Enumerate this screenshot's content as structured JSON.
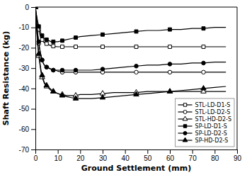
{
  "chart_data": {
    "type": "line",
    "xlabel": "Ground Settlement (mm)",
    "ylabel": "Shaft Resistance (kg)",
    "xlim": [
      0,
      90
    ],
    "ylim": [
      -70,
      0
    ],
    "xticks": [
      0,
      10,
      20,
      30,
      40,
      50,
      60,
      70,
      80,
      90
    ],
    "yticks": [
      0,
      -10,
      -20,
      -30,
      -40,
      -50,
      -60,
      -70
    ],
    "grid": false,
    "legend": "lower right",
    "series": [
      {
        "name": "STL-LD-D1-S",
        "marker": "square-open",
        "color": "#000000",
        "x": [
          0,
          0.5,
          1,
          1.5,
          2,
          2.5,
          3,
          3.5,
          4,
          5,
          6,
          7,
          8,
          9,
          10,
          12,
          14,
          16,
          18,
          20,
          25,
          30,
          35,
          40,
          45,
          50,
          55,
          60,
          65,
          70,
          75,
          80,
          85
        ],
        "values": [
          0,
          -4,
          -8,
          -11,
          -13.5,
          -15,
          -16,
          -17,
          -17.5,
          -18,
          -18.5,
          -19,
          -19.2,
          -19.4,
          -19.5,
          -19.5,
          -19.5,
          -19.5,
          -19.5,
          -19.5,
          -19.5,
          -19.5,
          -19.5,
          -19.5,
          -19.5,
          -19.5,
          -19.5,
          -19.5,
          -19.5,
          -19.5,
          -19.5,
          -19.5,
          -19.5
        ]
      },
      {
        "name": "STL-LD-D2-S",
        "marker": "circle-open",
        "color": "#000000",
        "x": [
          0,
          0.5,
          1,
          1.5,
          2,
          2.5,
          3,
          3.5,
          4,
          5,
          6,
          7,
          8,
          9,
          10,
          12,
          14,
          16,
          18,
          20,
          25,
          30,
          35,
          40,
          45,
          50,
          55,
          60,
          65,
          70,
          75,
          80,
          85
        ],
        "values": [
          0,
          -7,
          -13,
          -18,
          -21,
          -24,
          -26,
          -27.5,
          -28.5,
          -29.5,
          -30,
          -30.5,
          -31,
          -31,
          -31.5,
          -32,
          -32,
          -32,
          -32,
          -32,
          -32,
          -32,
          -32,
          -32,
          -32,
          -32,
          -32,
          -32,
          -32,
          -32,
          -32,
          -32,
          -32
        ]
      },
      {
        "name": "STL-HD-D2-S",
        "marker": "triangle-open",
        "color": "#000000",
        "x": [
          0,
          0.5,
          1,
          1.5,
          2,
          2.5,
          3,
          3.5,
          4,
          5,
          6,
          7,
          8,
          9,
          10,
          12,
          14,
          16,
          18,
          20,
          25,
          30,
          35,
          40,
          45,
          50,
          55,
          60,
          65,
          70,
          75,
          80,
          85
        ],
        "values": [
          0,
          -10,
          -18,
          -24,
          -28,
          -32,
          -34.5,
          -36,
          -37.5,
          -39,
          -40,
          -41,
          -41.5,
          -42,
          -42.5,
          -43,
          -43.5,
          -43.5,
          -43.5,
          -43,
          -43,
          -42.5,
          -42,
          -42,
          -42,
          -41.5,
          -41.5,
          -41.5,
          -41.5,
          -41.5,
          -41.5,
          -41.5,
          -41.5
        ]
      },
      {
        "name": "SP-LD-D1-S",
        "marker": "square",
        "color": "#000000",
        "x": [
          0,
          0.5,
          1,
          1.5,
          2,
          2.5,
          3,
          3.5,
          4,
          5,
          6,
          7,
          8,
          9,
          10,
          12,
          14,
          16,
          18,
          20,
          25,
          30,
          35,
          40,
          45,
          50,
          55,
          60,
          65,
          70,
          75,
          80,
          85
        ],
        "values": [
          0,
          -4,
          -7,
          -9.5,
          -11.5,
          -13,
          -14,
          -15,
          -15.5,
          -16,
          -16.5,
          -17,
          -17,
          -17,
          -17,
          -16.5,
          -16,
          -15.5,
          -15,
          -14.5,
          -14,
          -13.5,
          -13,
          -12.5,
          -12,
          -11.5,
          -11.5,
          -11,
          -11,
          -10.5,
          -10.5,
          -10,
          -10
        ]
      },
      {
        "name": "SP-LD-D2-S",
        "marker": "circle",
        "color": "#000000",
        "x": [
          0,
          0.5,
          1,
          1.5,
          2,
          2.5,
          3,
          3.5,
          4,
          5,
          6,
          7,
          8,
          9,
          10,
          12,
          14,
          16,
          18,
          20,
          25,
          30,
          35,
          40,
          45,
          50,
          55,
          60,
          65,
          70,
          75,
          80,
          85
        ],
        "values": [
          0,
          -7,
          -13,
          -17,
          -21,
          -24,
          -26,
          -27.5,
          -28.5,
          -29.5,
          -30,
          -30.5,
          -31,
          -31,
          -31,
          -31,
          -31,
          -31,
          -31,
          -31,
          -31,
          -30.5,
          -30,
          -29.5,
          -29,
          -28.5,
          -28.5,
          -28,
          -28,
          -27.5,
          -27.5,
          -27,
          -27
        ]
      },
      {
        "name": "SP-HD-D2-S",
        "marker": "triangle",
        "color": "#000000",
        "x": [
          0,
          0.5,
          1,
          1.5,
          2,
          2.5,
          3,
          3.5,
          4,
          5,
          6,
          7,
          8,
          9,
          10,
          12,
          14,
          16,
          18,
          20,
          25,
          30,
          35,
          40,
          45,
          50,
          55,
          60,
          65,
          70,
          75,
          80,
          85
        ],
        "values": [
          0,
          -9,
          -17,
          -23,
          -27,
          -31,
          -33.5,
          -35.5,
          -37,
          -38.5,
          -39.5,
          -40.5,
          -41.5,
          -42,
          -42.5,
          -43.5,
          -44,
          -44.5,
          -45,
          -45,
          -45,
          -44.5,
          -44,
          -43.5,
          -43,
          -42.5,
          -42,
          -41.5,
          -41,
          -40.5,
          -40,
          -39.5,
          -39
        ]
      }
    ]
  }
}
